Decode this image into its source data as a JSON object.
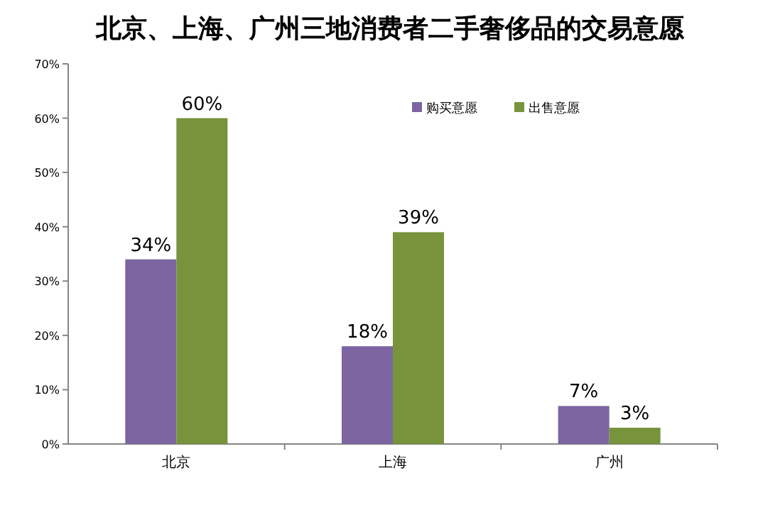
{
  "chart_data": {
    "type": "bar",
    "title": "北京、上海、广州三地消费者二手奢侈品的交易意愿",
    "categories": [
      "北京",
      "上海",
      "广州"
    ],
    "series": [
      {
        "name": "购买意愿",
        "color": "#7b64a0",
        "values": [
          34,
          18,
          7
        ],
        "value_labels": [
          "34%",
          "18%",
          "7%"
        ]
      },
      {
        "name": "出售意愿",
        "color": "#77933c",
        "values": [
          60,
          39,
          3
        ],
        "value_labels": [
          "60%",
          "39%",
          "3%"
        ]
      }
    ],
    "ylim": [
      0,
      70
    ],
    "yticks": [
      {
        "value": 0,
        "label": "0%"
      },
      {
        "value": 10,
        "label": "10%"
      },
      {
        "value": 20,
        "label": "20%"
      },
      {
        "value": 30,
        "label": "30%"
      },
      {
        "value": 40,
        "label": "40%"
      },
      {
        "value": 50,
        "label": "50%"
      },
      {
        "value": 60,
        "label": "60%"
      },
      {
        "value": 70,
        "label": "70%"
      }
    ],
    "grid": false,
    "legend": "top right"
  }
}
